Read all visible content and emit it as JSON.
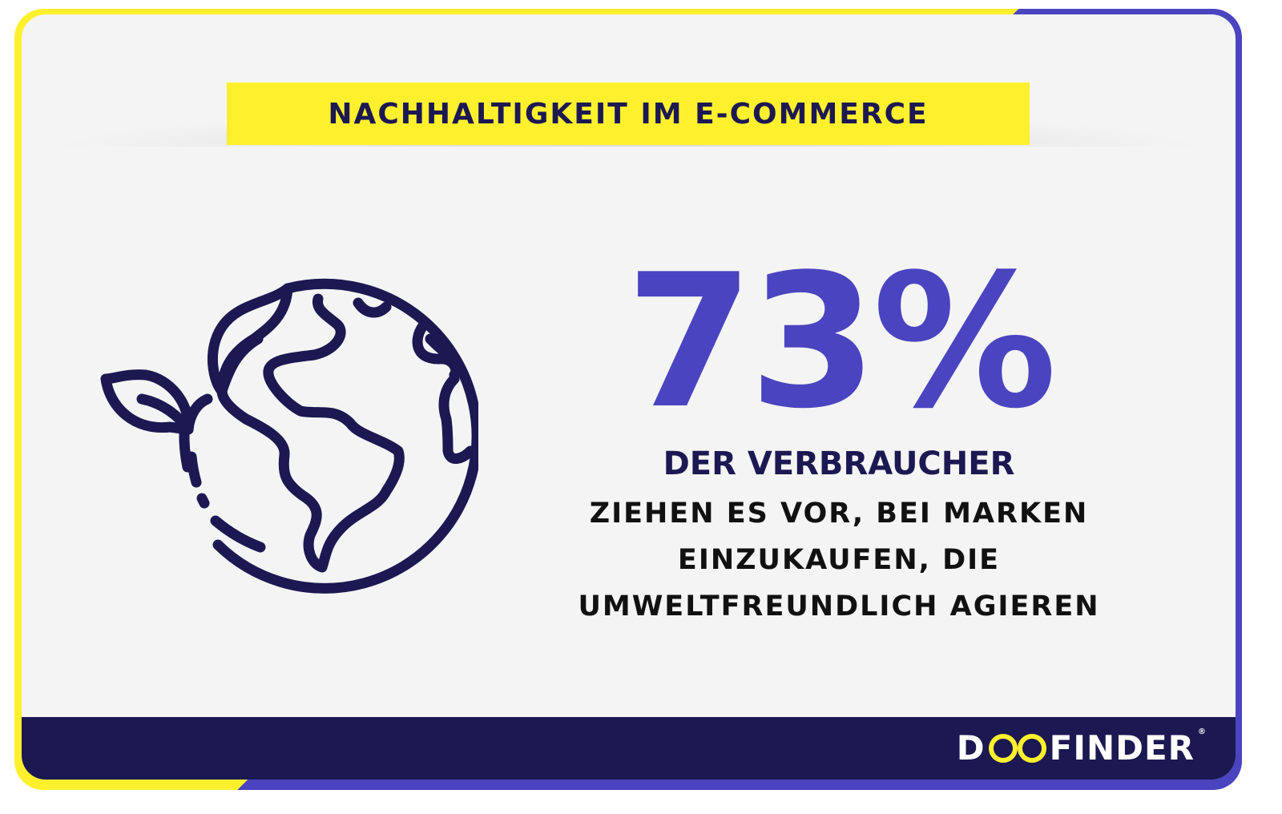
{
  "header": {
    "title": "NACHHALTIGKEIT IM E-COMMERCE"
  },
  "stat": {
    "percent": "73%",
    "subject": "DER VERBRAUCHER",
    "description_lines": [
      "ZIEHEN ES VOR, BEI MARKEN",
      "EINZUKAUFEN, DIE",
      "UMWELTFREUNDLICH AGIEREN"
    ]
  },
  "illustration": {
    "icon": "globe-with-sprout-icon"
  },
  "footer": {
    "logo_text": "DOOFINDER",
    "logo_parts": [
      "D",
      "FINDER"
    ],
    "registered": "®"
  },
  "colors": {
    "yellow": "#fff02e",
    "purple": "#4a44c0",
    "navy": "#1c1852",
    "background": "#f4f4f4"
  }
}
